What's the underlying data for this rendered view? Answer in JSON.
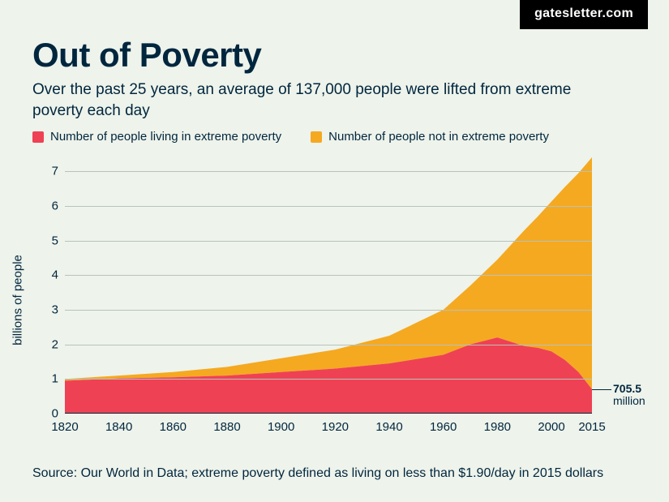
{
  "badge": "gatesletter.com",
  "title": "Out of Poverty",
  "subtitle": "Over the past 25 years, an average of 137,000 people were lifted from extreme poverty each day",
  "legend": {
    "poverty": {
      "label": "Number of people living in extreme poverty",
      "color": "#ef4154"
    },
    "not_poverty": {
      "label": "Number of people not in extreme poverty",
      "color": "#f5a920"
    }
  },
  "chart": {
    "type": "stacked-area",
    "ylabel": "billions of people",
    "background_color": "#eef3eb",
    "grid_color": "#b8c2bc",
    "axis_color": "#00263e",
    "text_color": "#00263e",
    "label_fontsize": 15,
    "xlim": [
      1820,
      2015
    ],
    "ylim": [
      0,
      7.5
    ],
    "yticks": [
      0,
      1,
      2,
      3,
      4,
      5,
      6,
      7
    ],
    "xticks": [
      1820,
      1840,
      1860,
      1880,
      1900,
      1920,
      1940,
      1960,
      1980,
      2000,
      2015
    ],
    "years": [
      1820,
      1840,
      1860,
      1880,
      1900,
      1920,
      1940,
      1960,
      1970,
      1980,
      1990,
      1995,
      2000,
      2005,
      2010,
      2015
    ],
    "poverty": [
      0.95,
      1.02,
      1.05,
      1.1,
      1.2,
      1.3,
      1.45,
      1.7,
      2.0,
      2.2,
      1.95,
      1.9,
      1.8,
      1.55,
      1.2,
      0.7055
    ],
    "not_poverty": [
      0.05,
      0.08,
      0.15,
      0.25,
      0.4,
      0.55,
      0.8,
      1.3,
      1.7,
      2.25,
      3.35,
      3.8,
      4.33,
      5.0,
      5.75,
      6.7
    ],
    "callout": {
      "value": "705.5",
      "unit": "million",
      "year": 2015,
      "y": 0.7055
    }
  },
  "source": "Source: Our World in Data; extreme poverty defined as living on less than $1.90/day in 2015 dollars"
}
